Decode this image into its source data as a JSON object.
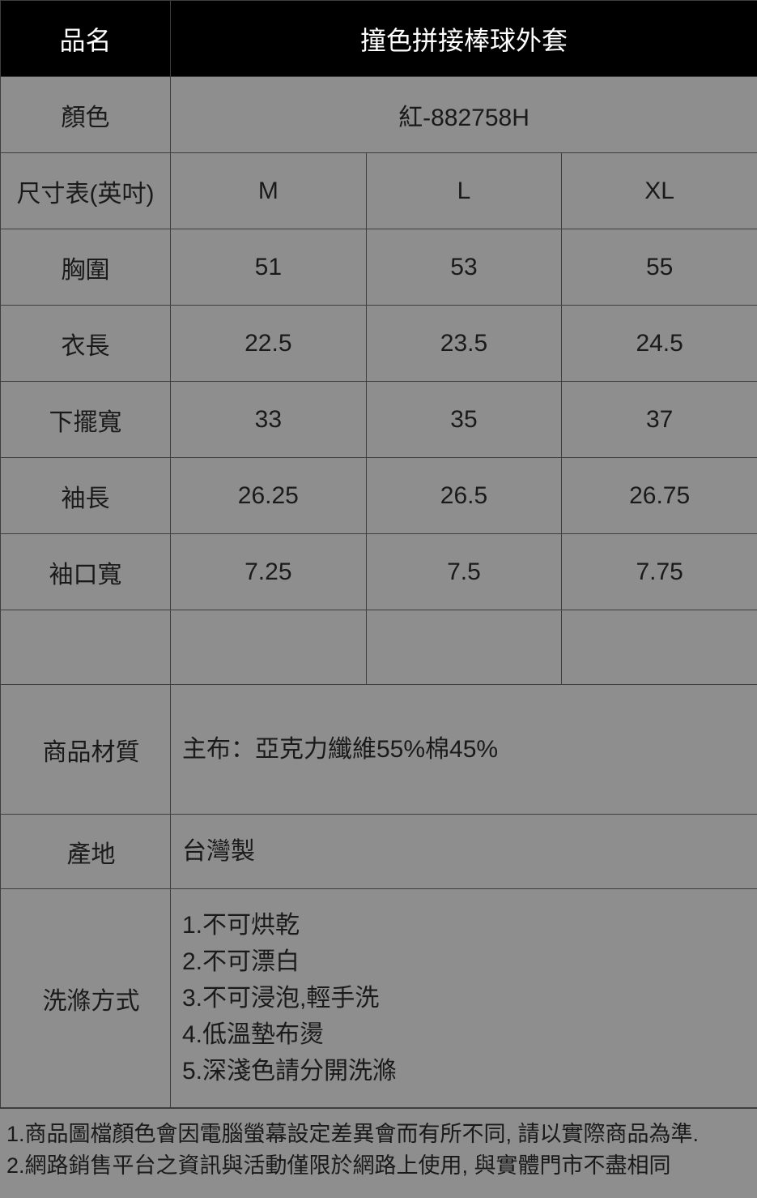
{
  "background_color": "#8e8e8e",
  "header_bg": "#000000",
  "header_fg": "#ffffff",
  "border_color": "#3e3e3e",
  "text_color": "#1a1a1a",
  "header": {
    "name_label": "品名",
    "product_name": "撞色拼接棒球外套"
  },
  "color_row": {
    "label": "顏色",
    "value": "紅-882758H"
  },
  "size_table": {
    "label": "尺寸表(英吋)",
    "sizes": [
      "M",
      "L",
      "XL"
    ],
    "rows": [
      {
        "label": "胸圍",
        "values": [
          "51",
          "53",
          "55"
        ]
      },
      {
        "label": "衣長",
        "values": [
          "22.5",
          "23.5",
          "24.5"
        ]
      },
      {
        "label": "下擺寬",
        "values": [
          "33",
          "35",
          "37"
        ]
      },
      {
        "label": "袖長",
        "values": [
          "26.25",
          "26.5",
          "26.75"
        ]
      },
      {
        "label": "袖口寬",
        "values": [
          "7.25",
          "7.5",
          "7.75"
        ]
      }
    ]
  },
  "material": {
    "label": "商品材質",
    "value": "主布：亞克力纖維55%棉45%"
  },
  "origin": {
    "label": "產地",
    "value": "台灣製"
  },
  "wash": {
    "label": "洗滌方式",
    "lines": [
      "1.不可烘乾",
      "2.不可漂白",
      "3.不可浸泡,輕手洗",
      "4.低溫墊布燙",
      "5.深淺色請分開洗滌"
    ]
  },
  "footnotes": [
    "1.商品圖檔顏色會因電腦螢幕設定差異會而有所不同, 請以實際商品為準.",
    "2.網路銷售平台之資訊與活動僅限於網路上使用, 與實體門市不盡相同"
  ]
}
